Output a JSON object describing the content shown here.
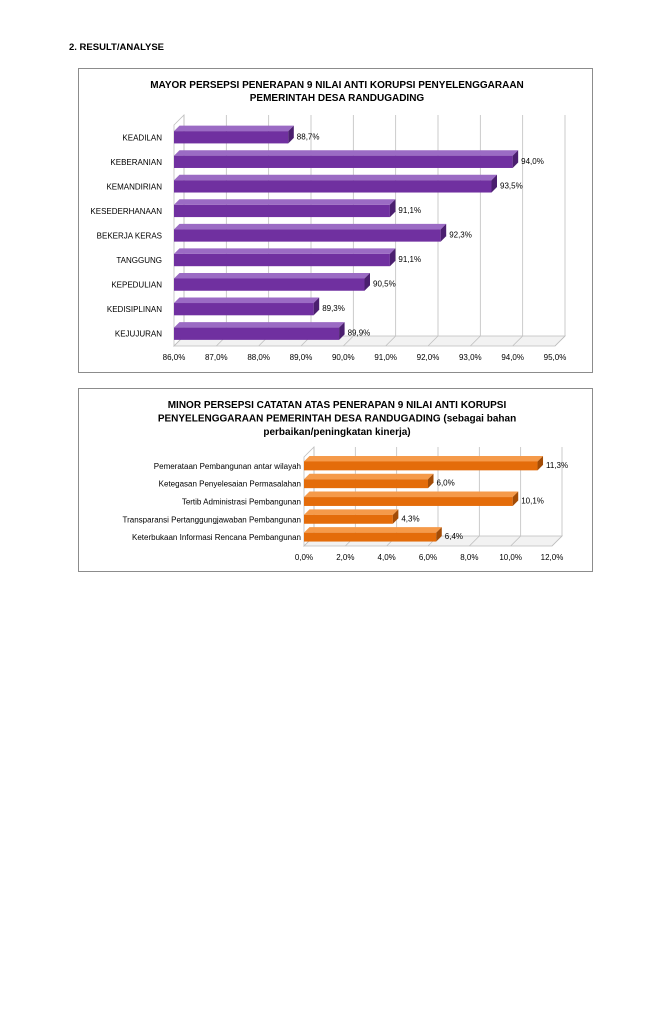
{
  "heading": "2. RESULT/ANALYSE",
  "chart_data": [
    {
      "type": "bar",
      "orientation": "horizontal",
      "title_lines": [
        "MAYOR PERSEPSI PENERAPAN 9 NILAI ANTI KORUPSI PENYELENGGARAAN",
        "PEMERINTAH DESA RANDUGADING"
      ],
      "categories": [
        "KEADILAN",
        "KEBERANIAN",
        "KEMANDIRIAN",
        "KESEDERHANAAN",
        "BEKERJA KERAS",
        "TANGGUNG",
        "KEPEDULIAN",
        "KEDISIPLINAN",
        "KEJUJURAN"
      ],
      "values": [
        88.7,
        94.0,
        93.5,
        91.1,
        92.3,
        91.1,
        90.5,
        89.3,
        89.9
      ],
      "value_labels": [
        "88,7%",
        "94,0%",
        "93,5%",
        "91,1%",
        "92,3%",
        "91,1%",
        "90,5%",
        "89,3%",
        "89,9%"
      ],
      "xlim": [
        86,
        95
      ],
      "ticks": [
        86,
        87,
        88,
        89,
        90,
        91,
        92,
        93,
        94,
        95
      ],
      "tick_labels": [
        "86,0%",
        "87,0%",
        "88,0%",
        "89,0%",
        "90,0%",
        "91,0%",
        "92,0%",
        "93,0%",
        "94,0%",
        "95,0%"
      ],
      "grid": true,
      "color": "#7030a0",
      "color_dark": "#4b1f6f",
      "color_light": "#9b6bc4"
    },
    {
      "type": "bar",
      "orientation": "horizontal",
      "title_lines": [
        "MINOR PERSEPSI CATATAN ATAS PENERAPAN 9 NILAI ANTI KORUPSI",
        "PENYELENGGARAAN PEMERINTAH DESA RANDUGADING (sebagai bahan",
        "perbaikan/peningkatan kinerja)"
      ],
      "categories": [
        "Pemerataan Pembangunan antar wilayah",
        "Ketegasan Penyelesaian Permasalahan",
        "Tertib Administrasi Pembangunan",
        "Transparansi Pertanggungjawaban Pembangunan",
        "Keterbukaan Informasi Rencana Pembangunan"
      ],
      "values": [
        11.3,
        6.0,
        10.1,
        4.3,
        6.4
      ],
      "value_labels": [
        "11,3%",
        "6,0%",
        "10,1%",
        "4,3%",
        "6,4%"
      ],
      "xlim": [
        0,
        12
      ],
      "ticks": [
        0,
        2,
        4,
        6,
        8,
        10,
        12
      ],
      "tick_labels": [
        "0,0%",
        "2,0%",
        "4,0%",
        "6,0%",
        "8,0%",
        "10,0%",
        "12,0%"
      ],
      "grid": true,
      "color": "#e46c0a",
      "color_dark": "#a34c06",
      "color_light": "#f59a4a"
    }
  ]
}
